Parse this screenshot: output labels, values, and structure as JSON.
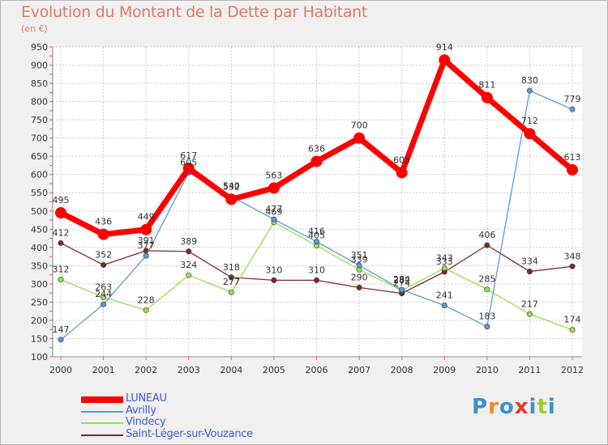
{
  "title": "Evolution du Montant de la Dette par Habitant",
  "subtitle": "(en €)",
  "logo_text": "Proxiti",
  "chart_data": {
    "type": "line",
    "x": [
      "2000",
      "2001",
      "2002",
      "2003",
      "2004",
      "2005",
      "2006",
      "2007",
      "2008",
      "2009",
      "2010",
      "2011",
      "2012"
    ],
    "ylim": [
      100,
      950
    ],
    "yticks": [
      100,
      150,
      200,
      250,
      300,
      350,
      400,
      450,
      500,
      550,
      600,
      650,
      700,
      750,
      800,
      850,
      900,
      950
    ],
    "grid": true,
    "legend_position": "bottom-left",
    "series": [
      {
        "name": "LUNEAU",
        "color": "#ff0000",
        "values": [
          495,
          436,
          449,
          617,
          532,
          563,
          636,
          700,
          605,
          914,
          811,
          712,
          613
        ]
      },
      {
        "name": "Avrilly",
        "color": "#5b9bd5",
        "values": [
          147,
          244,
          377,
          605,
          540,
          477,
          416,
          351,
          284,
          241,
          183,
          830,
          779
        ]
      },
      {
        "name": "Vindecy",
        "color": "#99dd55",
        "values": [
          312,
          263,
          228,
          324,
          277,
          469,
          405,
          339,
          282,
          343,
          285,
          217,
          174
        ]
      },
      {
        "name": "Saint-Léger-sur-Vouzance",
        "color": "#7b2a2a",
        "values": [
          412,
          352,
          391,
          389,
          318,
          310,
          310,
          290,
          274,
          333,
          406,
          334,
          348
        ]
      }
    ]
  },
  "legend": [
    "LUNEAU",
    "Avrilly",
    "Vindecy",
    "Saint-Léger-sur-Vouzance"
  ]
}
